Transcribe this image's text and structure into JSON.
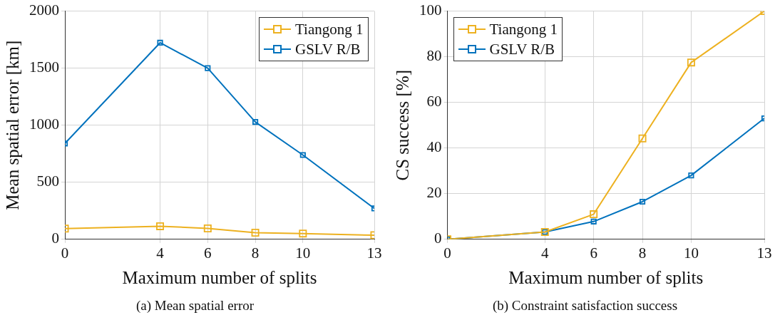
{
  "chart_data": [
    {
      "type": "line",
      "xlabel": "Maximum number of splits",
      "ylabel": "Mean spatial error [km]",
      "x": [
        0,
        4,
        6,
        8,
        10,
        13
      ],
      "xlim": [
        0,
        13
      ],
      "xticks": [
        0,
        4,
        6,
        8,
        10,
        13
      ],
      "ylim": [
        0,
        2000
      ],
      "yticks": [
        0,
        500,
        1000,
        1500,
        2000
      ],
      "grid": true,
      "legend": "top right",
      "marker": "square",
      "line_style": "solid",
      "annotations": [
        "(a) Mean spatial error"
      ],
      "series": [
        {
          "name": "Tiangong 1",
          "color": "#edb120",
          "values": [
            94,
            115,
            96,
            58,
            51,
            36
          ]
        },
        {
          "name": "GSLV R/B",
          "color": "#0072bd",
          "values": [
            840,
            1723,
            1500,
            1029,
            739,
            271
          ]
        }
      ]
    },
    {
      "type": "line",
      "xlabel": "Maximum number of splits",
      "ylabel": "CS success [%]",
      "x": [
        0,
        4,
        6,
        8,
        10,
        13
      ],
      "xlim": [
        0,
        13
      ],
      "xticks": [
        0,
        4,
        6,
        8,
        10,
        13
      ],
      "ylim": [
        0,
        100
      ],
      "yticks": [
        0,
        20,
        40,
        60,
        80,
        100
      ],
      "grid": true,
      "legend": "top left",
      "marker": "square",
      "line_style": "solid",
      "annotations": [
        "(b) Constraint satisfaction success"
      ],
      "series": [
        {
          "name": "Tiangong 1",
          "color": "#edb120",
          "values": [
            0,
            3.2,
            11,
            44.2,
            77.5,
            100
          ]
        },
        {
          "name": "GSLV R/B",
          "color": "#0072bd",
          "values": [
            0,
            3.2,
            7.8,
            16.5,
            28,
            53
          ]
        }
      ]
    }
  ]
}
